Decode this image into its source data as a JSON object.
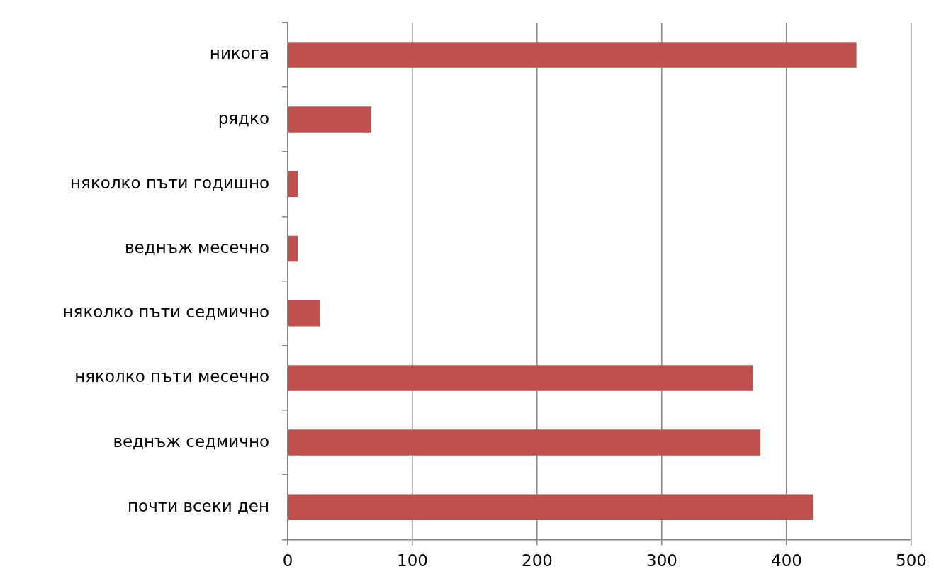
{
  "chart_data": {
    "type": "bar",
    "orientation": "horizontal",
    "categories": [
      "никога",
      "рядко",
      "няколко пъти годишно",
      "веднъж месечно",
      "няколко пъти седмично",
      "няколко пъти месечно",
      "веднъж седмично",
      "почти всеки ден"
    ],
    "values": [
      456,
      67,
      8,
      8,
      26,
      373,
      379,
      421
    ],
    "color": "#c0504d",
    "xlim": [
      0,
      500
    ],
    "xticks": [
      0,
      100,
      200,
      300,
      400,
      500
    ],
    "grid": "x",
    "legend": false
  }
}
